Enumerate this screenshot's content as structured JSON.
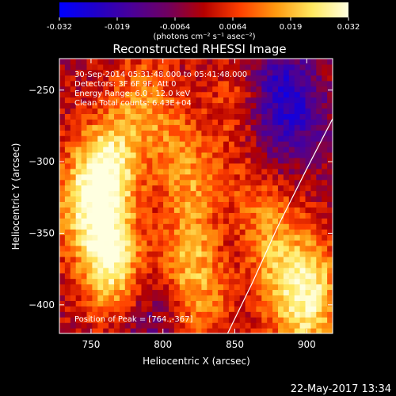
{
  "chart_data": {
    "type": "heatmap",
    "title": "Reconstructed RHESSI Image",
    "xlabel": "Heliocentric X (arcsec)",
    "ylabel": "Heliocentric Y (arcsec)",
    "xlim": [
      728,
      918
    ],
    "ylim": [
      -420,
      -228
    ],
    "x_ticks": [
      750,
      800,
      850,
      900
    ],
    "y_ticks": [
      -250,
      -300,
      -350,
      -400
    ],
    "colorbar": {
      "min": -0.032,
      "max": 0.032,
      "ticks": [
        "-0.032",
        "-0.019",
        "-0.0064",
        "0.0064",
        "0.019",
        "0.032"
      ],
      "label": "(photons cm⁻² s⁻¹ asec⁻²)",
      "colors": [
        "#0000ff",
        "#2000c8",
        "#4a0098",
        "#700060",
        "#b40000",
        "#ff4000",
        "#ff9a10",
        "#ffe860",
        "#ffffe0"
      ]
    },
    "annotations": [
      "30-Sep-2014 05:31:48.000 to 05:41:48.000",
      "Detectors: 3F 6F 9F, Att 0",
      "Energy Range: 6.0 - 12.0 keV",
      "Clean    Total counts: 6.43E+04"
    ],
    "peak_label": "Position of Peak = [764.,-367]",
    "peak_position": [
      764,
      -367
    ],
    "intensity_features": [
      {
        "x": 762,
        "y": -305,
        "value": 0.03
      },
      {
        "x": 764,
        "y": -367,
        "value": 0.032
      },
      {
        "x": 742,
        "y": -330,
        "value": 0.02
      },
      {
        "x": 785,
        "y": -260,
        "value": 0.015
      },
      {
        "x": 808,
        "y": -290,
        "value": 0.01
      },
      {
        "x": 822,
        "y": -320,
        "value": 0.012
      },
      {
        "x": 818,
        "y": -370,
        "value": 0.016
      },
      {
        "x": 832,
        "y": -395,
        "value": 0.01
      },
      {
        "x": 850,
        "y": -262,
        "value": 0.008
      },
      {
        "x": 860,
        "y": -330,
        "value": 0.01
      },
      {
        "x": 878,
        "y": -340,
        "value": 0.008
      },
      {
        "x": 880,
        "y": -380,
        "value": 0.014
      },
      {
        "x": 905,
        "y": -385,
        "value": 0.018
      },
      {
        "x": 898,
        "y": -410,
        "value": 0.014
      },
      {
        "x": 880,
        "y": -248,
        "value": -0.016
      },
      {
        "x": 898,
        "y": -268,
        "value": -0.012
      },
      {
        "x": 872,
        "y": -290,
        "value": -0.006
      },
      {
        "x": 790,
        "y": -415,
        "value": -0.008
      },
      {
        "x": 845,
        "y": -350,
        "value": -0.004
      }
    ],
    "limb_arc": [
      [
        918,
        -270
      ],
      [
        900,
        -305
      ],
      [
        880,
        -345
      ],
      [
        862,
        -385
      ],
      [
        845,
        -420
      ]
    ],
    "grid": false
  },
  "footer_date": "22-May-2017 13:34"
}
